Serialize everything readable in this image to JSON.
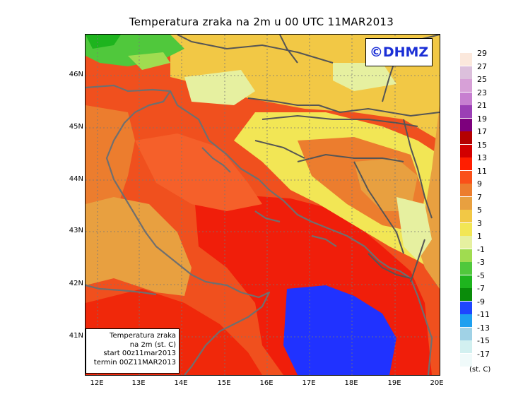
{
  "title": "Temperatura zraka na 2m u 00 UTC 11MAR2013",
  "watermark": "©DHMZ",
  "info_box": {
    "line1": "Temperatura zraka",
    "line2": "na 2m (st. C)",
    "line3": "start 00z11mar2013",
    "line4": "termin 00Z11MAR2013"
  },
  "lat_labels": [
    "46N",
    "45N",
    "44N",
    "43N",
    "42N",
    "41N"
  ],
  "lon_labels": [
    "12E",
    "13E",
    "14E",
    "15E",
    "16E",
    "17E",
    "18E",
    "19E",
    "20E"
  ],
  "legend": {
    "unit": "(st. C)",
    "labels": [
      "29",
      "27",
      "25",
      "23",
      "21",
      "19",
      "17",
      "15",
      "13",
      "11",
      "9",
      "7",
      "5",
      "3",
      "1",
      "-1",
      "-3",
      "-5",
      "-7",
      "-9",
      "-11",
      "-13",
      "-15",
      "-17"
    ],
    "colors": [
      "#fbe8dc",
      "#dcc0dc",
      "#d7a0d7",
      "#c77fd0",
      "#9b3fb5",
      "#7d007d",
      "#b40000",
      "#d20000",
      "#ff1e00",
      "#fa5019",
      "#ec7d2e",
      "#e8a040",
      "#f2c845",
      "#f2e655",
      "#e6f0a0",
      "#a0dc50",
      "#50c83c",
      "#1eb41e",
      "#0a8c0a",
      "#1e46ff",
      "#1ea0f0",
      "#a0d2e6",
      "#d2f0f0",
      "#f0fafa"
    ]
  }
}
